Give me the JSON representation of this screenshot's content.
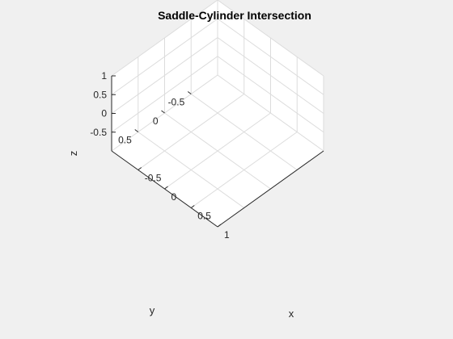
{
  "chart_data": {
    "type": "surface",
    "title": "Saddle-Cylinder Intersection",
    "xlabel": "x",
    "ylabel": "y",
    "zlabel": "z",
    "xlim": [
      -1,
      1
    ],
    "ylim": [
      -1,
      1
    ],
    "zlim": [
      -1,
      1
    ],
    "xticks": [
      -0.5,
      0,
      0.5,
      1
    ],
    "xtick_labels": [
      "-0.5",
      "0",
      "0.5",
      "1"
    ],
    "yticks": [
      -0.5,
      0,
      0.5
    ],
    "ytick_labels": [
      "-0.5",
      "0",
      "0.5"
    ],
    "zticks": [
      -0.5,
      0,
      0.5,
      1
    ],
    "ztick_labels": [
      "-0.5",
      "0",
      "0.5",
      "1"
    ],
    "grid": true,
    "box": true,
    "series": [],
    "colors": {
      "background": "#f0f0f0",
      "axes_background": "#ffffff",
      "grid": "#dcdcdc",
      "text": "#262626"
    }
  }
}
